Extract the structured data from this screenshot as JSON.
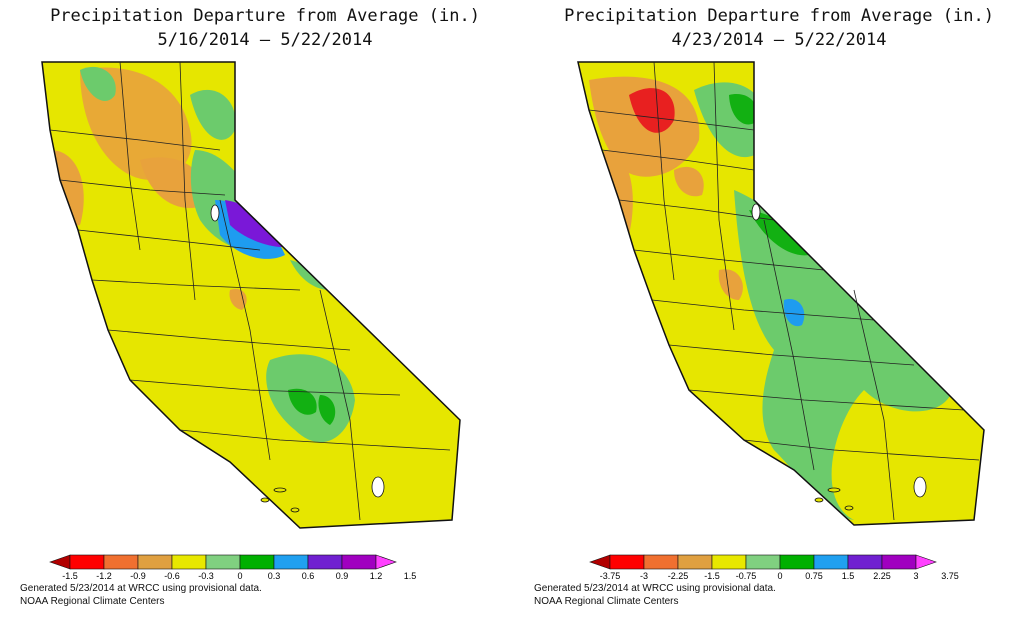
{
  "maps": [
    {
      "title_line1": "Precipitation Departure from Average (in.)",
      "title_line2": "5/16/2014 – 5/22/2014",
      "legend_labels": [
        "-1.5",
        "-1.2",
        "-0.9",
        "-0.6",
        "-0.3",
        "0",
        "0.3",
        "0.6",
        "0.9",
        "1.2",
        "1.5"
      ],
      "footer_line1": "Generated 5/23/2014 at WRCC using provisional data.",
      "footer_line2": "NOAA Regional Climate Centers"
    },
    {
      "title_line1": "Precipitation Departure from Average (in.)",
      "title_line2": "4/23/2014 – 5/22/2014",
      "legend_labels": [
        "-3.75",
        "-3",
        "-2.25",
        "-1.5",
        "-0.75",
        "0",
        "0.75",
        "1.5",
        "2.25",
        "3",
        "3.75"
      ],
      "footer_line1": "Generated 5/23/2014 at WRCC using provisional data.",
      "footer_line2": "NOAA Regional Climate Centers"
    }
  ],
  "legend_colors": [
    "#b10000",
    "#ff0000",
    "#f07030",
    "#e0a040",
    "#e8e800",
    "#80d080",
    "#00b000",
    "#20a0f0",
    "#7020d0",
    "#a000c0",
    "#ff40ff"
  ],
  "map_colors": {
    "yellow": "#e6e600",
    "green": "#6ccb6c",
    "dgreen": "#12b012",
    "orange": "#e8a23c",
    "lorange": "#e8c040",
    "red": "#e82020",
    "blue": "#1e9cf0",
    "purple": "#7a18d8"
  }
}
